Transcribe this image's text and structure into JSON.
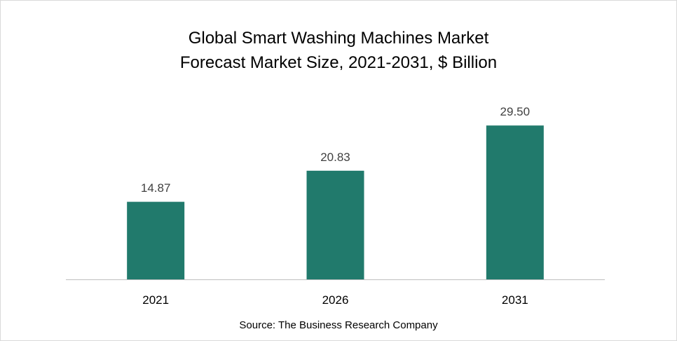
{
  "chart_data": {
    "type": "bar",
    "title_lines": [
      "Global Smart Washing Machines Market",
      "Forecast Market Size, 2021-2031, $ Billion"
    ],
    "categories": [
      "2021",
      "2026",
      "2031"
    ],
    "values": [
      14.87,
      20.83,
      29.5
    ],
    "value_labels": [
      "14.87",
      "20.83",
      "29.50"
    ],
    "xlabel": "",
    "ylabel": "",
    "ylim": [
      0,
      40
    ],
    "grid": false,
    "bar_color": "#217a6c"
  },
  "source": "Source: The Business Research Company"
}
